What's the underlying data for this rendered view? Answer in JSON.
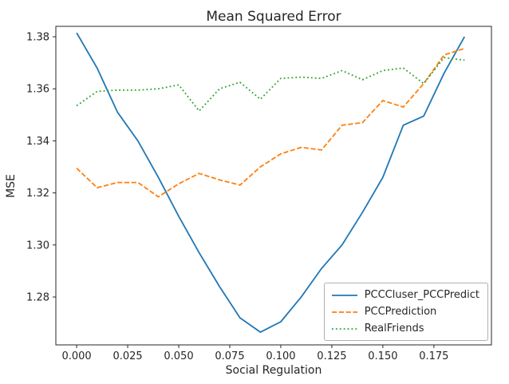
{
  "chart_data": {
    "type": "line",
    "title": "Mean Squared Error",
    "xlabel": "Social Regulation",
    "ylabel": "MSE",
    "xlim": [
      -0.0102,
      0.2032
    ],
    "ylim": [
      1.2616,
      1.384
    ],
    "grid": false,
    "legend_position": "lower right",
    "x_ticks": [
      0.0,
      0.025,
      0.05,
      0.075,
      0.1,
      0.125,
      0.15,
      0.175
    ],
    "x_tick_labels": [
      "0.000",
      "0.025",
      "0.050",
      "0.075",
      "0.100",
      "0.125",
      "0.150",
      "0.175"
    ],
    "y_ticks": [
      1.28,
      1.3,
      1.32,
      1.34,
      1.36,
      1.38
    ],
    "y_tick_labels": [
      "1.28",
      "1.30",
      "1.32",
      "1.34",
      "1.36",
      "1.38"
    ],
    "x": [
      0.0,
      0.01,
      0.02,
      0.03,
      0.04,
      0.05,
      0.06,
      0.07,
      0.08,
      0.09,
      0.1,
      0.11,
      0.12,
      0.13,
      0.14,
      0.15,
      0.16,
      0.17,
      0.18,
      0.19
    ],
    "series": [
      {
        "name": "PCCCluser_PCCPredict",
        "color": "#1f77b4",
        "style": "solid",
        "values": [
          1.3815,
          1.368,
          1.351,
          1.34,
          1.326,
          1.311,
          1.297,
          1.284,
          1.272,
          1.2665,
          1.2705,
          1.28,
          1.291,
          1.3,
          1.3125,
          1.326,
          1.346,
          1.3495,
          1.366,
          1.38
        ]
      },
      {
        "name": "PCCPrediction",
        "color": "#ff7f0e",
        "style": "dashed",
        "values": [
          1.3295,
          1.322,
          1.324,
          1.324,
          1.3185,
          1.3235,
          1.3275,
          1.325,
          1.323,
          1.33,
          1.335,
          1.3375,
          1.3365,
          1.346,
          1.347,
          1.3555,
          1.353,
          1.362,
          1.373,
          1.3755
        ]
      },
      {
        "name": "RealFriends",
        "color": "#2ca02c",
        "style": "dotted",
        "values": [
          1.3535,
          1.359,
          1.3595,
          1.3595,
          1.36,
          1.3615,
          1.3515,
          1.36,
          1.3625,
          1.356,
          1.364,
          1.3645,
          1.364,
          1.367,
          1.3635,
          1.367,
          1.368,
          1.362,
          1.372,
          1.371
        ]
      }
    ]
  }
}
